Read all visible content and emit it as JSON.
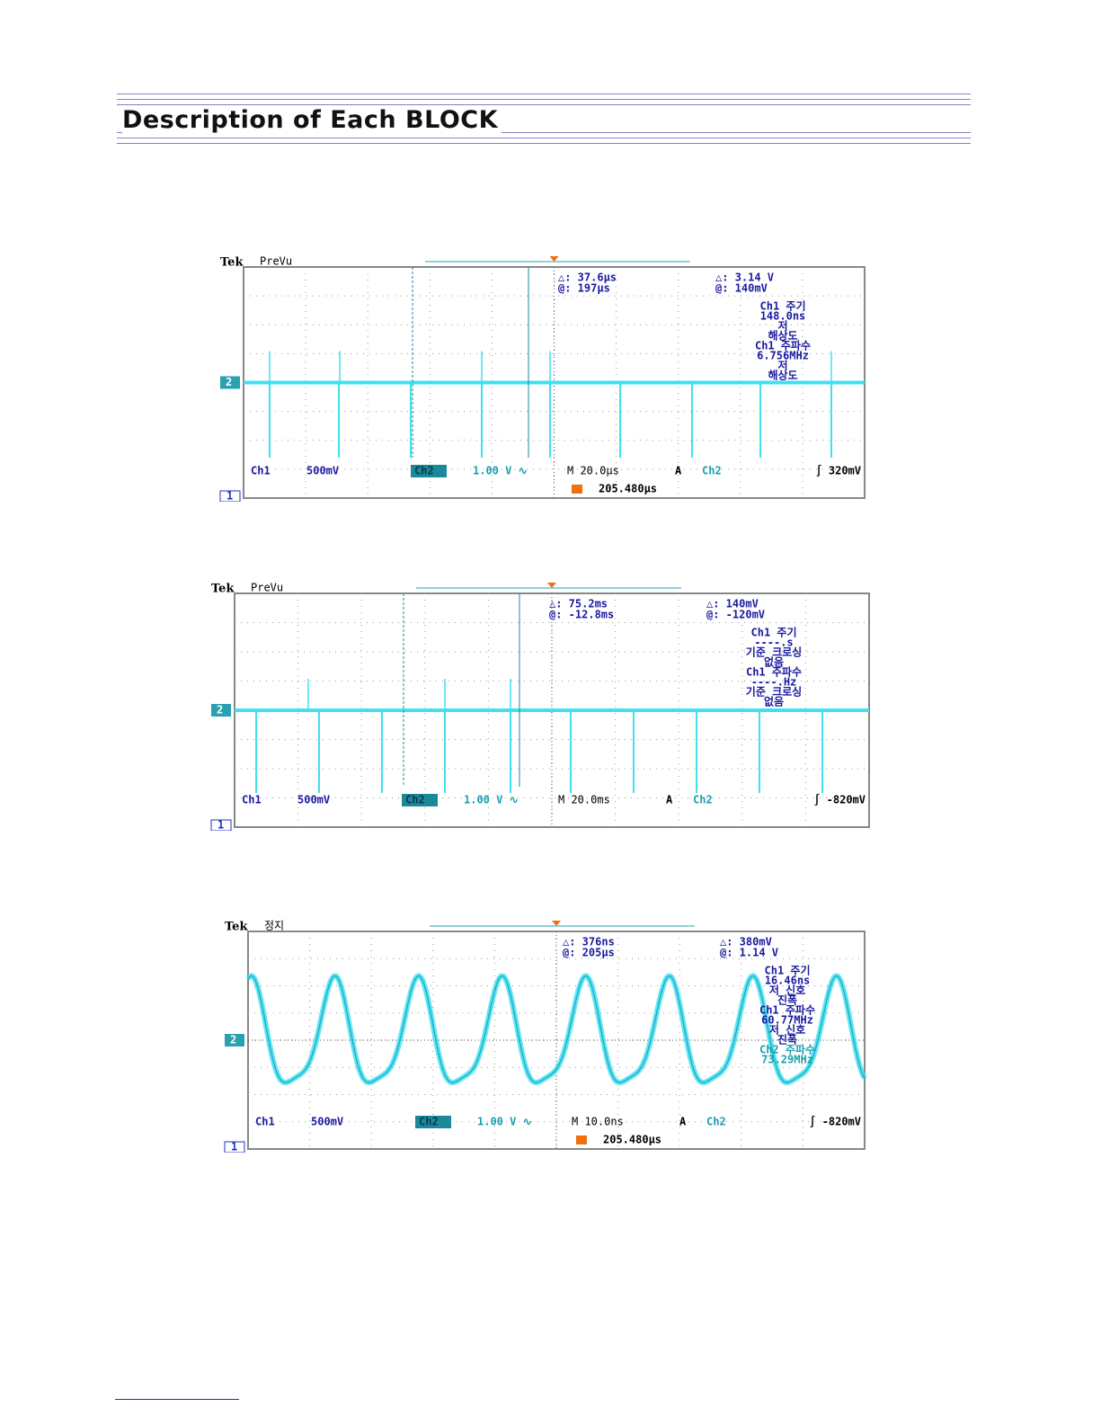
{
  "header": {
    "title": "Description of Each BLOCK"
  },
  "scopes": [
    {
      "brand": "Tek",
      "mode": "PreVu",
      "readouts": [
        "△: 37.6µs",
        "@: 197µs",
        "△: 3.14 V",
        "@: 140mV"
      ],
      "measurements": [
        "Ch1 주기",
        "148.0ns",
        "저",
        "해상도",
        "Ch1 주파수",
        "6.756MHz",
        "저",
        "해상도"
      ],
      "channel_marker": "2",
      "ground_marker": "1",
      "ch1": "Ch1",
      "ch1_scale": "500mV",
      "ch2": "Ch2",
      "ch2_scale": "1.00 V ∿",
      "timebase": "M 20.0µs",
      "acq": "A",
      "trig_source": "Ch2",
      "trig_level": "∫ 320mV",
      "trigger_position": "205.480µs"
    },
    {
      "brand": "Tek",
      "mode": "PreVu",
      "readouts": [
        "△: 75.2ms",
        "@: -12.8ms",
        "△: 140mV",
        "@: -120mV"
      ],
      "measurements": [
        "Ch1 주기",
        "----.s",
        "기준 크로싱",
        "없음",
        "Ch1 주파수",
        "----.Hz",
        "기준 크로싱",
        "없음"
      ],
      "channel_marker": "2",
      "ground_marker": "1",
      "ch1": "Ch1",
      "ch1_scale": "500mV",
      "ch2": "Ch2",
      "ch2_scale": "1.00 V ∿",
      "timebase": "M 20.0ms",
      "acq": "A",
      "trig_source": "Ch2",
      "trig_level": "∫ -820mV"
    },
    {
      "brand": "Tek",
      "mode": "정지",
      "readouts": [
        "△: 376ns",
        "@: 205µs",
        "△: 380mV",
        "@: 1.14 V"
      ],
      "measurements": [
        "Ch1 주기",
        "16.46ns",
        "저 신호",
        "진폭",
        "Ch1 주파수",
        "60.77MHz",
        "저 신호",
        "진폭",
        "Ch2 주파수",
        "73.29MHz"
      ],
      "channel_marker": "2",
      "ground_marker": "1",
      "ch1": "Ch1",
      "ch1_scale": "500mV",
      "ch2": "Ch2",
      "ch2_scale": "1.00 V ∿",
      "timebase": "M 10.0ns",
      "acq": "A",
      "trig_source": "Ch2",
      "trig_level": "∫ -820mV",
      "trigger_position": "205.480µs"
    }
  ]
}
